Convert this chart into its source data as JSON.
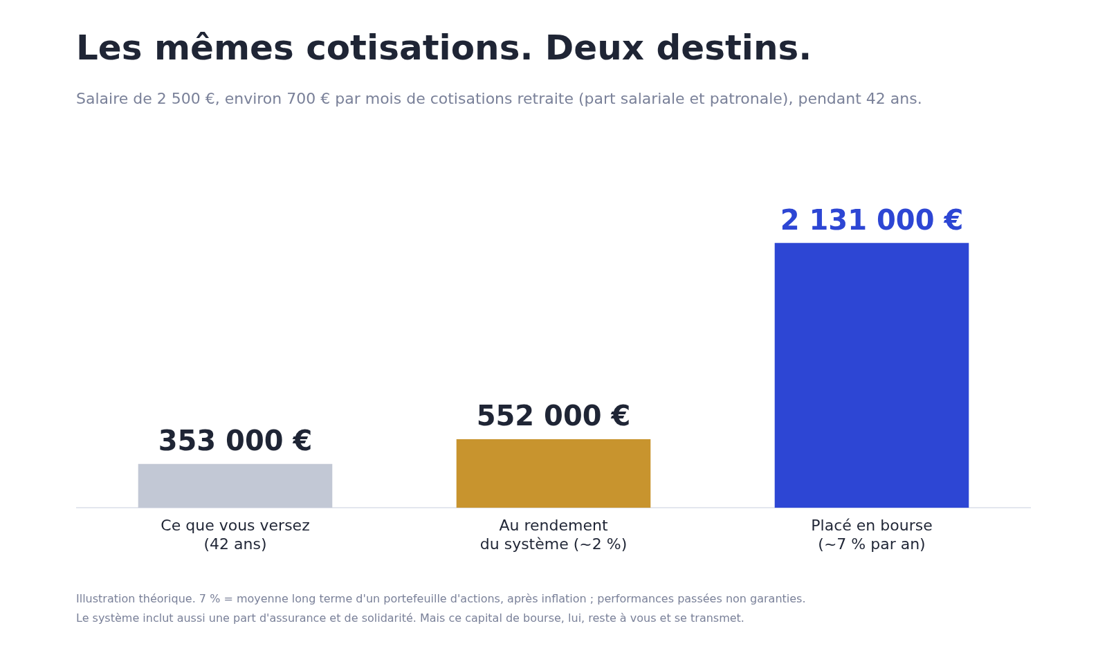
{
  "chart_data": {
    "type": "bar",
    "title": "Les mêmes cotisations. Deux destins.",
    "subtitle": "Salaire de 2 500 €, environ 700 € par mois de cotisations retraite (part salariale et patronale), pendant 42 ans.",
    "categories": [
      "Ce que vous versez\n(42 ans)",
      "Au rendement\ndu système (~2 %)",
      "Placé en bourse\n(~7 % par an)"
    ],
    "values": [
      353000,
      552000,
      2131000
    ],
    "colors": [
      "#c2c8d5",
      "#c8942e",
      "#2d46d4"
    ],
    "value_labels": [
      "353 000 €",
      "552 000 €",
      "2 131 000 €"
    ],
    "annotations": [
      "Illustration théorique. 7 % = moyenne long terme d'un portefeuille d'actions, après inflation ; performances passées non garanties.",
      "Le système inclut aussi une part d'assurance et de solidarité. Mais ce capital de bourse, lui, reste à vous et se transmet."
    ],
    "grid": false,
    "legend": false
  }
}
